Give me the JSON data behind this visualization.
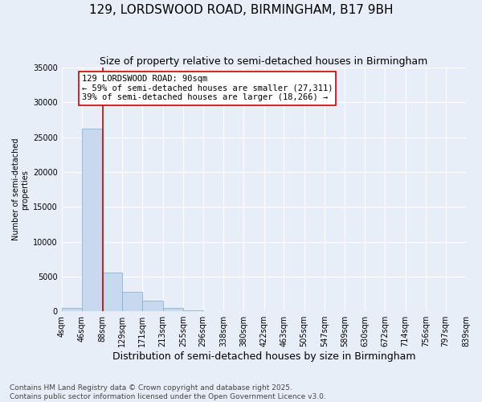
{
  "title": "129, LORDSWOOD ROAD, BIRMINGHAM, B17 9BH",
  "subtitle": "Size of property relative to semi-detached houses in Birmingham",
  "xlabel": "Distribution of semi-detached houses by size in Birmingham",
  "ylabel": "Number of semi-detached\nproperties",
  "bar_color": "#c8d9ee",
  "bar_edge_color": "#7aaad0",
  "background_color": "#e8eef8",
  "bins": [
    4,
    46,
    88,
    129,
    171,
    213,
    255,
    296,
    338,
    380,
    422,
    463,
    505,
    547,
    589,
    630,
    672,
    714,
    756,
    797,
    839
  ],
  "bin_labels": [
    "4sqm",
    "46sqm",
    "88sqm",
    "129sqm",
    "171sqm",
    "213sqm",
    "255sqm",
    "296sqm",
    "338sqm",
    "380sqm",
    "422sqm",
    "463sqm",
    "505sqm",
    "547sqm",
    "589sqm",
    "630sqm",
    "672sqm",
    "714sqm",
    "756sqm",
    "797sqm",
    "839sqm"
  ],
  "bar_heights": [
    500,
    26200,
    5500,
    2800,
    1500,
    500,
    100,
    30,
    0,
    0,
    0,
    0,
    0,
    0,
    0,
    0,
    0,
    0,
    0,
    0
  ],
  "ylim": [
    0,
    35000
  ],
  "yticks": [
    0,
    5000,
    10000,
    15000,
    20000,
    25000,
    30000,
    35000
  ],
  "property_line_x": 90,
  "annotation_text": "129 LORDSWOOD ROAD: 90sqm\n← 59% of semi-detached houses are smaller (27,311)\n39% of semi-detached houses are larger (18,266) →",
  "annotation_box_color": "#ffffff",
  "annotation_box_edge": "#cc0000",
  "red_line_color": "#cc0000",
  "footer_text": "Contains HM Land Registry data © Crown copyright and database right 2025.\nContains public sector information licensed under the Open Government Licence v3.0.",
  "grid_color": "#ffffff",
  "title_fontsize": 11,
  "subtitle_fontsize": 9,
  "annotation_fontsize": 7.5,
  "tick_fontsize": 7,
  "ylabel_fontsize": 7,
  "xlabel_fontsize": 9,
  "footer_fontsize": 6.5
}
